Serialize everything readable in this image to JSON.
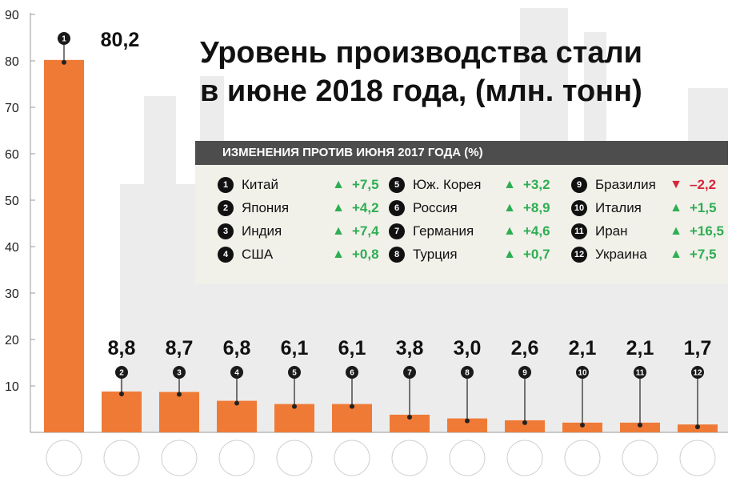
{
  "title_line1": "Уровень производства стали",
  "title_line2": "в июне 2018 года, (млн. тонн)",
  "panel": {
    "heading": "ИЗМЕНЕНИЯ ПРОТИВ ИЮНЯ 2017 ГОДА (%)",
    "items": [
      {
        "rank": "1",
        "country": "Китай",
        "change": "+7,5",
        "direction": "up"
      },
      {
        "rank": "2",
        "country": "Япония",
        "change": "+4,2",
        "direction": "up"
      },
      {
        "rank": "3",
        "country": "Индия",
        "change": "+7,4",
        "direction": "up"
      },
      {
        "rank": "4",
        "country": "США",
        "change": "+0,8",
        "direction": "up"
      },
      {
        "rank": "5",
        "country": "Юж. Корея",
        "change": "+3,2",
        "direction": "up"
      },
      {
        "rank": "6",
        "country": "Россия",
        "change": "+8,9",
        "direction": "up"
      },
      {
        "rank": "7",
        "country": "Германия",
        "change": "+4,6",
        "direction": "up"
      },
      {
        "rank": "8",
        "country": "Турция",
        "change": "+0,7",
        "direction": "up"
      },
      {
        "rank": "9",
        "country": "Бразилия",
        "change": "–2,2",
        "direction": "down"
      },
      {
        "rank": "10",
        "country": "Италия",
        "change": "+1,5",
        "direction": "up"
      },
      {
        "rank": "11",
        "country": "Иран",
        "change": "+16,5",
        "direction": "up"
      },
      {
        "rank": "12",
        "country": "Украина",
        "change": "+7,5",
        "direction": "up"
      }
    ]
  },
  "chart_data": {
    "type": "bar",
    "ylim": [
      0,
      90
    ],
    "yticks": [
      10,
      20,
      30,
      40,
      50,
      60,
      70,
      80,
      90
    ],
    "grid": false,
    "value_labels": [
      "80,2",
      "8,8",
      "8,7",
      "6,8",
      "6,1",
      "6,1",
      "3,8",
      "3,0",
      "2,6",
      "2,1",
      "2,1",
      "1,7"
    ],
    "series": [
      {
        "values": [
          80.2,
          8.8,
          8.7,
          6.8,
          6.1,
          6.1,
          3.8,
          3.0,
          2.6,
          2.1,
          2.1,
          1.7
        ]
      }
    ],
    "ranks": [
      "1",
      "2",
      "3",
      "4",
      "5",
      "6",
      "7",
      "8",
      "9",
      "10",
      "11",
      "12"
    ],
    "flags": [
      "china",
      "japan",
      "india",
      "usa",
      "south-korea",
      "russia",
      "germany",
      "turkey",
      "brazil",
      "italy",
      "iran",
      "ukraine"
    ],
    "bar_color": "#ef7a36"
  }
}
